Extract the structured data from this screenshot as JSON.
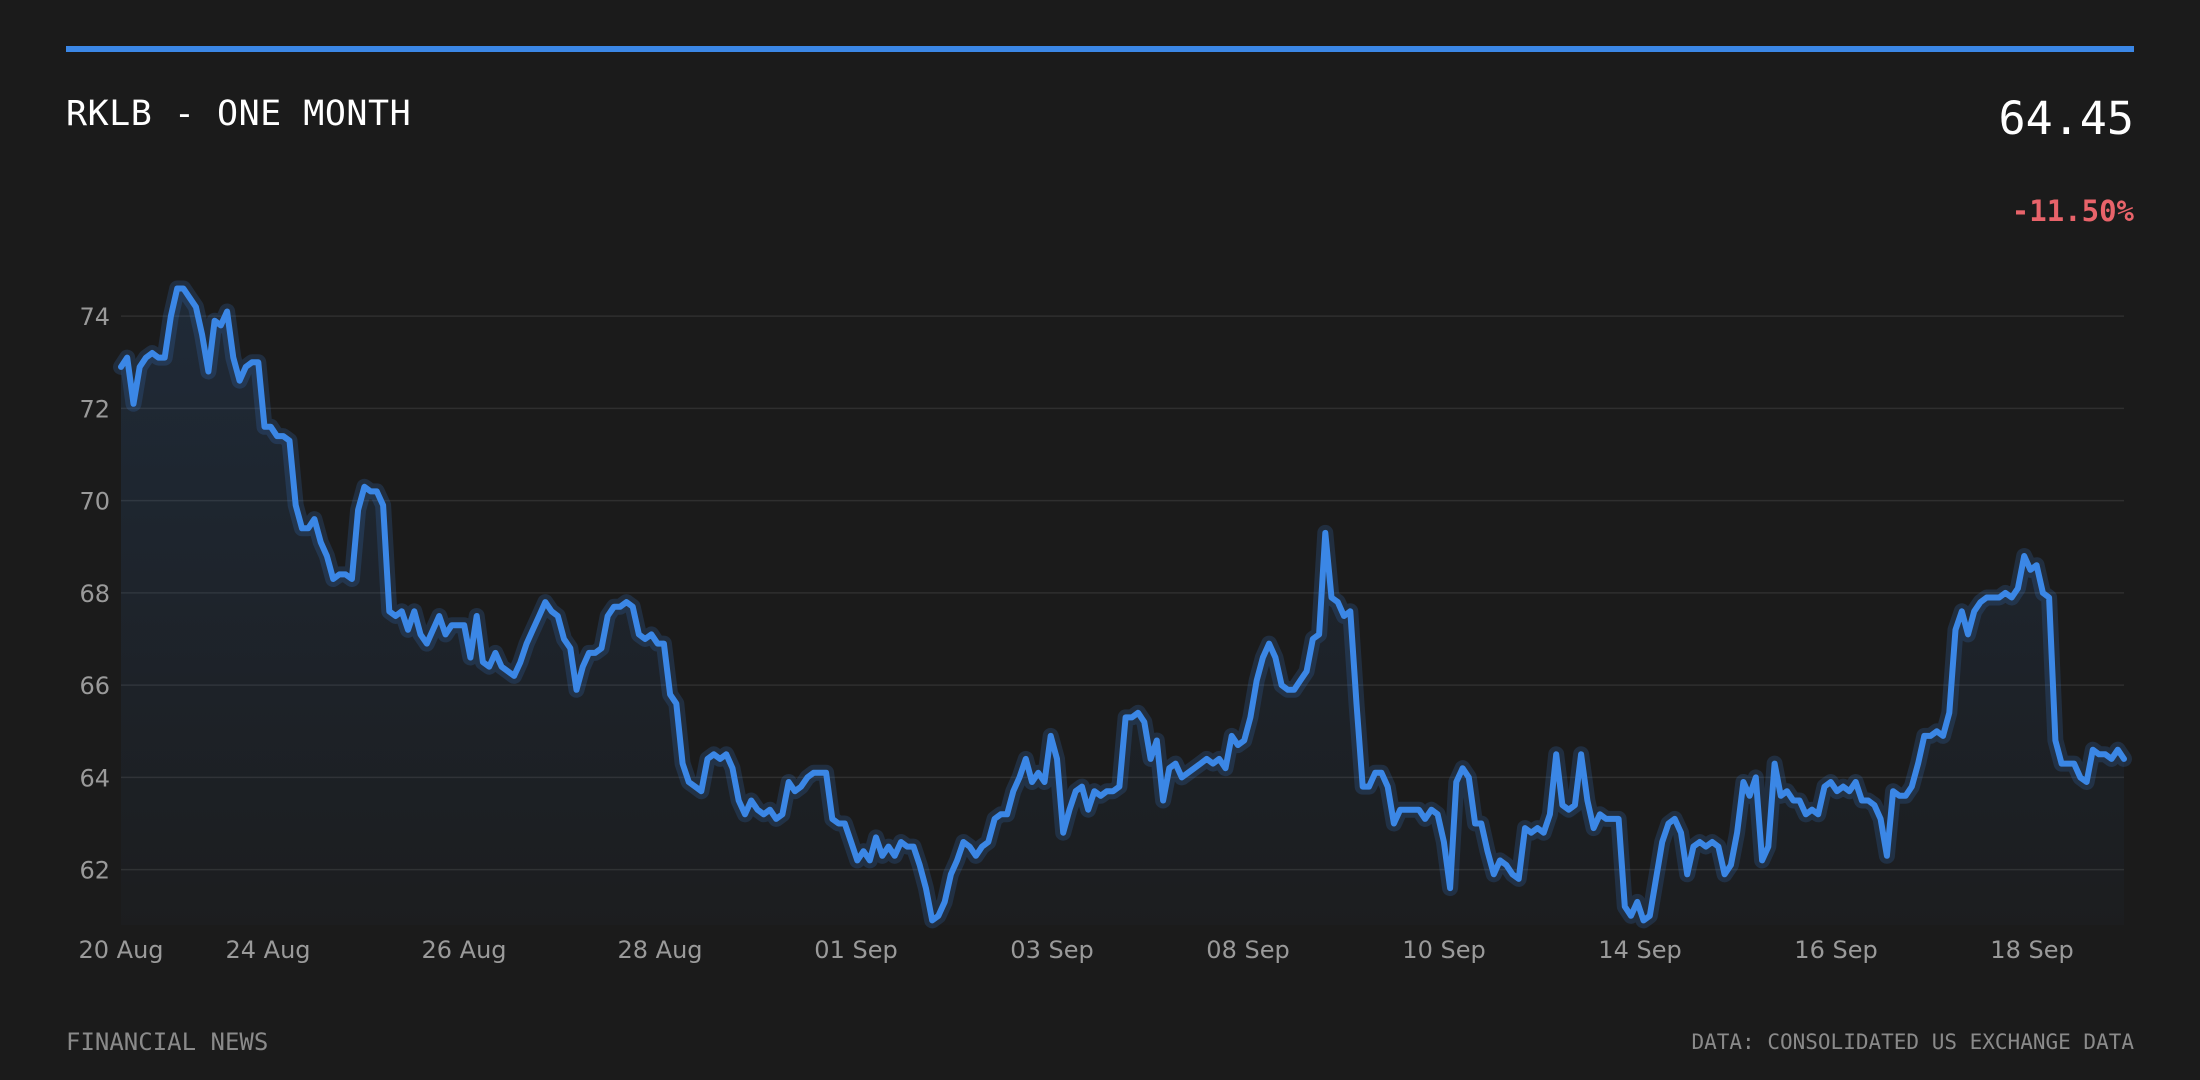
{
  "header": {
    "title": "RKLB - ONE MONTH",
    "price": "64.45",
    "change": "-11.50%"
  },
  "footer": {
    "left": "FINANCIAL NEWS",
    "right": "DATA: CONSOLIDATED US EXCHANGE DATA"
  },
  "colors": {
    "accent": "#3b87e6",
    "negative": "#e8636a",
    "gridline": "#2f2f2f",
    "text_muted": "#9a9a9a"
  },
  "chart_data": {
    "type": "area",
    "title": "RKLB - ONE MONTH",
    "ylim": [
      60.8,
      75.0
    ],
    "yticks": [
      62,
      64,
      66,
      68,
      70,
      72,
      74
    ],
    "grid": true,
    "x_ticks": [
      "20 Aug",
      "24 Aug",
      "26 Aug",
      "28 Aug",
      "01 Sep",
      "03 Sep",
      "08 Sep",
      "10 Sep",
      "14 Sep",
      "16 Sep",
      "18 Sep"
    ],
    "series": [
      {
        "values": [
          72.9,
          73.1,
          72.1,
          72.9,
          73.1,
          73.2,
          73.1,
          73.1,
          74.0,
          74.6,
          74.6,
          74.4,
          74.2,
          73.6,
          72.8,
          73.9,
          73.8,
          74.1,
          73.1,
          72.6,
          72.9,
          73.0,
          73.0,
          71.6,
          71.6,
          71.4,
          71.4,
          71.3,
          69.9,
          69.4,
          69.4,
          69.6,
          69.1,
          68.8,
          68.3,
          68.4,
          68.4,
          68.3,
          69.8,
          70.3,
          70.2,
          70.2,
          69.9,
          67.6,
          67.5,
          67.6,
          67.2,
          67.6,
          67.1,
          66.9,
          67.2,
          67.5,
          67.1,
          67.3,
          67.3,
          67.3,
          66.6,
          67.5,
          66.5,
          66.4,
          66.7,
          66.4,
          66.3,
          66.2,
          66.5,
          66.9,
          67.2,
          67.5,
          67.8,
          67.6,
          67.5,
          67.0,
          66.8,
          65.9,
          66.4,
          66.7,
          66.7,
          66.8,
          67.5,
          67.7,
          67.7,
          67.8,
          67.7,
          67.1,
          67.0,
          67.1,
          66.9,
          66.9,
          65.8,
          65.6,
          64.3,
          63.9,
          63.8,
          63.7,
          64.4,
          64.5,
          64.4,
          64.5,
          64.2,
          63.5,
          63.2,
          63.5,
          63.3,
          63.2,
          63.3,
          63.1,
          63.2,
          63.9,
          63.7,
          63.8,
          64.0,
          64.1,
          64.1,
          64.1,
          63.1,
          63.0,
          63.0,
          62.6,
          62.2,
          62.4,
          62.2,
          62.7,
          62.3,
          62.5,
          62.3,
          62.6,
          62.5,
          62.5,
          62.1,
          61.6,
          60.9,
          61.0,
          61.3,
          61.9,
          62.2,
          62.6,
          62.5,
          62.3,
          62.5,
          62.6,
          63.1,
          63.2,
          63.2,
          63.7,
          64.0,
          64.4,
          63.9,
          64.1,
          63.9,
          64.9,
          64.4,
          62.8,
          63.3,
          63.7,
          63.8,
          63.3,
          63.7,
          63.6,
          63.7,
          63.7,
          63.8,
          65.3,
          65.3,
          65.4,
          65.2,
          64.4,
          64.8,
          63.5,
          64.2,
          64.3,
          64.0,
          64.1,
          64.2,
          64.3,
          64.4,
          64.3,
          64.4,
          64.2,
          64.9,
          64.7,
          64.8,
          65.3,
          66.1,
          66.6,
          66.9,
          66.6,
          66.0,
          65.9,
          65.9,
          66.1,
          66.3,
          67.0,
          67.1,
          69.3,
          67.9,
          67.8,
          67.5,
          67.6,
          65.6,
          63.8,
          63.8,
          64.1,
          64.1,
          63.8,
          63.0,
          63.3,
          63.3,
          63.3,
          63.3,
          63.1,
          63.3,
          63.2,
          62.6,
          61.6,
          63.9,
          64.2,
          64.0,
          63.0,
          63.0,
          62.4,
          61.9,
          62.2,
          62.1,
          61.9,
          61.8,
          62.9,
          62.8,
          62.9,
          62.8,
          63.2,
          64.5,
          63.4,
          63.3,
          63.4,
          64.5,
          63.5,
          62.9,
          63.2,
          63.1,
          63.1,
          63.1,
          61.2,
          61.0,
          61.3,
          60.9,
          61.0,
          61.8,
          62.6,
          63.0,
          63.1,
          62.8,
          61.9,
          62.5,
          62.6,
          62.5,
          62.6,
          62.5,
          61.9,
          62.1,
          62.8,
          63.9,
          63.6,
          64.0,
          62.2,
          62.5,
          64.3,
          63.6,
          63.7,
          63.5,
          63.5,
          63.2,
          63.3,
          63.2,
          63.8,
          63.9,
          63.7,
          63.8,
          63.7,
          63.9,
          63.5,
          63.5,
          63.4,
          63.1,
          62.3,
          63.7,
          63.6,
          63.6,
          63.8,
          64.3,
          64.9,
          64.9,
          65.0,
          64.9,
          65.4,
          67.2,
          67.6,
          67.1,
          67.6,
          67.8,
          67.9,
          67.9,
          67.9,
          68.0,
          67.9,
          68.1,
          68.8,
          68.5,
          68.6,
          68.0,
          67.9,
          64.8,
          64.3,
          64.3,
          64.3,
          64.0,
          63.9,
          64.6,
          64.5,
          64.5,
          64.4,
          64.6,
          64.4
        ]
      }
    ]
  }
}
